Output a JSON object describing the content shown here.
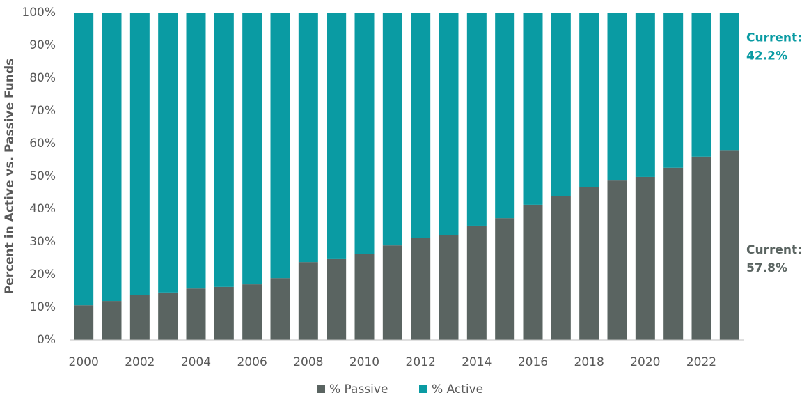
{
  "chart_data": {
    "type": "stacked_bar",
    "y_label": "Percent in Active vs. Passive Funds",
    "categories": [
      "2000",
      null,
      "2002",
      null,
      "2004",
      null,
      "2006",
      null,
      "2008",
      null,
      "2010",
      null,
      "2012",
      null,
      "2014",
      null,
      "2016",
      null,
      "2018",
      null,
      "2020",
      null,
      "2022",
      null
    ],
    "series": [
      {
        "name": "% Passive",
        "color": "#5a6461",
        "values": [
          10.6,
          11.9,
          13.8,
          14.5,
          15.7,
          16.2,
          17.0,
          18.9,
          23.8,
          24.7,
          26.2,
          28.9,
          31.1,
          32.1,
          34.9,
          37.2,
          41.3,
          44.0,
          46.8,
          48.7,
          49.8,
          52.6,
          56.0,
          57.8
        ]
      },
      {
        "name": "% Active",
        "color": "#0a9ba3",
        "values": [
          89.4,
          88.1,
          86.2,
          85.5,
          84.3,
          83.8,
          83.0,
          81.1,
          76.2,
          75.3,
          73.8,
          71.1,
          68.9,
          67.9,
          65.1,
          62.8,
          58.7,
          56.0,
          53.2,
          51.3,
          50.2,
          47.4,
          44.0,
          42.2
        ]
      }
    ],
    "ylim": [
      0,
      100
    ],
    "yticks": [
      {
        "value": 0,
        "label": "0%"
      },
      {
        "value": 10,
        "label": "10%"
      },
      {
        "value": 20,
        "label": "20%"
      },
      {
        "value": 30,
        "label": "30%"
      },
      {
        "value": 40,
        "label": "40%"
      },
      {
        "value": 50,
        "label": "50%"
      },
      {
        "value": 60,
        "label": "60%"
      },
      {
        "value": 70,
        "label": "70%"
      },
      {
        "value": 80,
        "label": "80%"
      },
      {
        "value": 90,
        "label": "90%"
      },
      {
        "value": 100,
        "label": "100%"
      }
    ],
    "annotations": [
      {
        "title": "Current:",
        "text": "42.2%",
        "color": "#0a9ba3"
      },
      {
        "title": "Current:",
        "text": "57.8%",
        "color": "#5a6461"
      }
    ],
    "legend": "bottom"
  }
}
